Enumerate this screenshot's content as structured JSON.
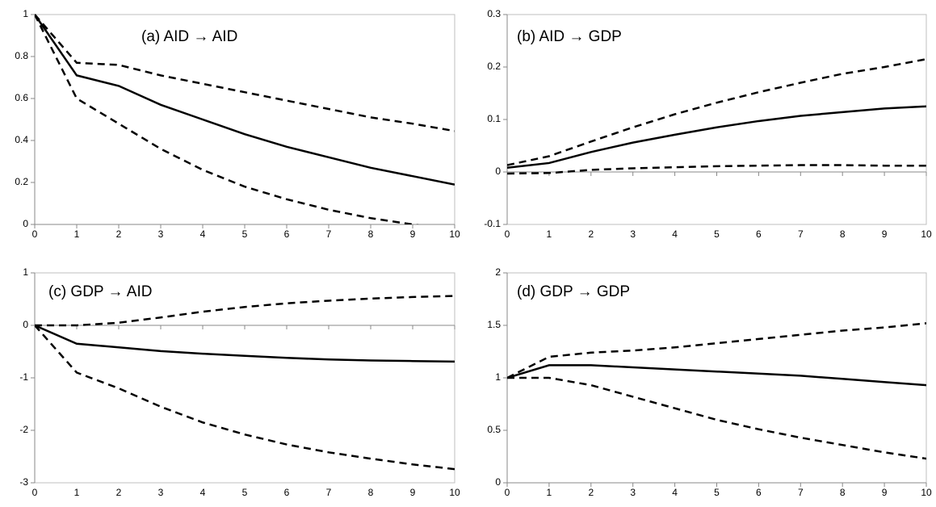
{
  "chart_data": [
    {
      "type": "line",
      "title": "(a) AID → AID",
      "x": [
        0,
        1,
        2,
        3,
        4,
        5,
        6,
        7,
        8,
        9,
        10
      ],
      "xlim": [
        0,
        10
      ],
      "xticks": [
        0,
        1,
        2,
        3,
        4,
        5,
        6,
        7,
        8,
        9,
        10
      ],
      "ylim": [
        0,
        1
      ],
      "yticks": [
        0,
        0.2,
        0.4,
        0.6,
        0.8,
        1
      ],
      "series": [
        {
          "color": "#000000",
          "line_style": "solid",
          "values": [
            1,
            0.71,
            0.66,
            0.57,
            0.5,
            0.43,
            0.37,
            0.32,
            0.27,
            0.23,
            0.19
          ]
        },
        {
          "color": "#000000",
          "line_style": "dashed",
          "values": [
            1,
            0.77,
            0.76,
            0.71,
            0.67,
            0.63,
            0.59,
            0.55,
            0.51,
            0.48,
            0.445
          ]
        },
        {
          "color": "#000000",
          "line_style": "dashed",
          "values": [
            1,
            0.6,
            0.48,
            0.36,
            0.26,
            0.18,
            0.12,
            0.07,
            0.03,
            0,
            -0.03
          ]
        }
      ]
    },
    {
      "type": "line",
      "title": "(b) AID → GDP",
      "x": [
        0,
        1,
        2,
        3,
        4,
        5,
        6,
        7,
        8,
        9,
        10
      ],
      "xlim": [
        0,
        10
      ],
      "xticks": [
        0,
        1,
        2,
        3,
        4,
        5,
        6,
        7,
        8,
        9,
        10
      ],
      "ylim": [
        -0.1,
        0.3
      ],
      "yticks": [
        -0.1,
        0,
        0.1,
        0.2,
        0.3
      ],
      "series": [
        {
          "color": "#000000",
          "line_style": "solid",
          "values": [
            0.008,
            0.017,
            0.038,
            0.056,
            0.071,
            0.085,
            0.097,
            0.107,
            0.114,
            0.121,
            0.125
          ]
        },
        {
          "color": "#000000",
          "line_style": "dashed",
          "values": [
            0.013,
            0.03,
            0.058,
            0.085,
            0.11,
            0.132,
            0.152,
            0.17,
            0.187,
            0.2,
            0.215
          ]
        },
        {
          "color": "#000000",
          "line_style": "dashed",
          "values": [
            -0.003,
            -0.002,
            0.004,
            0.007,
            0.009,
            0.011,
            0.012,
            0.013,
            0.013,
            0.012,
            0.012
          ]
        }
      ]
    },
    {
      "type": "line",
      "title": "(c) GDP → AID",
      "x": [
        0,
        1,
        2,
        3,
        4,
        5,
        6,
        7,
        8,
        9,
        10
      ],
      "xlim": [
        0,
        10
      ],
      "xticks": [
        0,
        1,
        2,
        3,
        4,
        5,
        6,
        7,
        8,
        9,
        10
      ],
      "ylim": [
        -3,
        1
      ],
      "yticks": [
        -3,
        -2,
        -1,
        0,
        1
      ],
      "series": [
        {
          "color": "#000000",
          "line_style": "solid",
          "values": [
            0,
            -0.35,
            -0.42,
            -0.49,
            -0.54,
            -0.58,
            -0.62,
            -0.65,
            -0.67,
            -0.68,
            -0.69
          ]
        },
        {
          "color": "#000000",
          "line_style": "dashed",
          "values": [
            0,
            0,
            0.05,
            0.15,
            0.26,
            0.35,
            0.42,
            0.47,
            0.51,
            0.54,
            0.56
          ]
        },
        {
          "color": "#000000",
          "line_style": "dashed",
          "values": [
            0,
            -0.9,
            -1.2,
            -1.55,
            -1.85,
            -2.08,
            -2.27,
            -2.42,
            -2.54,
            -2.65,
            -2.74
          ]
        }
      ]
    },
    {
      "type": "line",
      "title": "(d) GDP → GDP",
      "x": [
        0,
        1,
        2,
        3,
        4,
        5,
        6,
        7,
        8,
        9,
        10
      ],
      "xlim": [
        0,
        10
      ],
      "xticks": [
        0,
        1,
        2,
        3,
        4,
        5,
        6,
        7,
        8,
        9,
        10
      ],
      "ylim": [
        0,
        2
      ],
      "yticks": [
        0,
        0.5,
        1,
        1.5,
        2
      ],
      "series": [
        {
          "color": "#000000",
          "line_style": "solid",
          "values": [
            1,
            1.12,
            1.12,
            1.1,
            1.08,
            1.06,
            1.04,
            1.02,
            0.99,
            0.96,
            0.93
          ]
        },
        {
          "color": "#000000",
          "line_style": "dashed",
          "values": [
            1,
            1.2,
            1.24,
            1.26,
            1.29,
            1.33,
            1.37,
            1.41,
            1.45,
            1.48,
            1.52
          ]
        },
        {
          "color": "#000000",
          "line_style": "dashed",
          "values": [
            1,
            1,
            0.93,
            0.82,
            0.71,
            0.6,
            0.51,
            0.43,
            0.36,
            0.29,
            0.23
          ]
        }
      ]
    }
  ]
}
